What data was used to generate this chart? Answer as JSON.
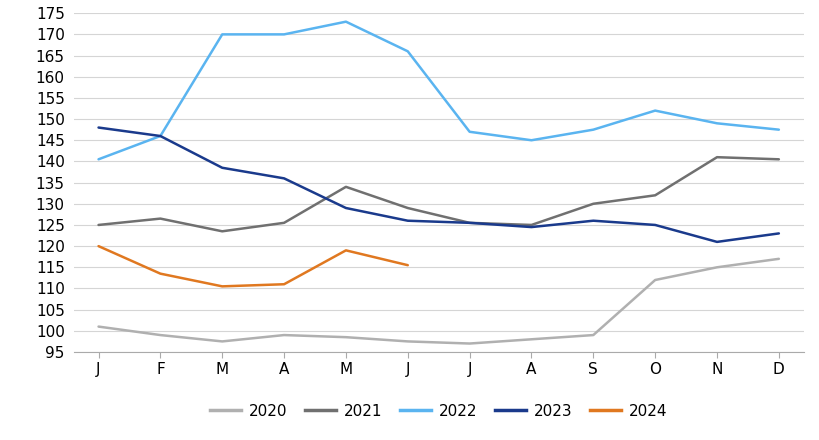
{
  "x_labels": [
    "J",
    "F",
    "M",
    "A",
    "M",
    "J",
    "J",
    "A",
    "S",
    "O",
    "N",
    "D"
  ],
  "series": {
    "2020": [
      101,
      99,
      97.5,
      99,
      98.5,
      97.5,
      97,
      98,
      99,
      112,
      115,
      117
    ],
    "2021": [
      125,
      126.5,
      123.5,
      125.5,
      134,
      129,
      125.5,
      125,
      130,
      132,
      141,
      140.5
    ],
    "2022": [
      140.5,
      146,
      170,
      170,
      173,
      166,
      147,
      145,
      147.5,
      152,
      149,
      147.5
    ],
    "2023": [
      148,
      146,
      138.5,
      136,
      129,
      126,
      125.5,
      124.5,
      126,
      125,
      121,
      123
    ],
    "2024": [
      120,
      113.5,
      110.5,
      111,
      119,
      115.5,
      null,
      null,
      null,
      null,
      null,
      null
    ]
  },
  "colors": {
    "2020": "#b0b0b0",
    "2021": "#707070",
    "2022": "#5ab4f0",
    "2023": "#1a3a8c",
    "2024": "#e07820"
  },
  "linewidth": 1.8,
  "ylim": [
    95,
    175
  ],
  "yticks": [
    95,
    100,
    105,
    110,
    115,
    120,
    125,
    130,
    135,
    140,
    145,
    150,
    155,
    160,
    165,
    170,
    175
  ],
  "grid_color": "#d5d5d5",
  "background_color": "#ffffff",
  "legend_order": [
    "2020",
    "2021",
    "2022",
    "2023",
    "2024"
  ],
  "tick_label_fontsize": 11,
  "legend_fontsize": 11
}
